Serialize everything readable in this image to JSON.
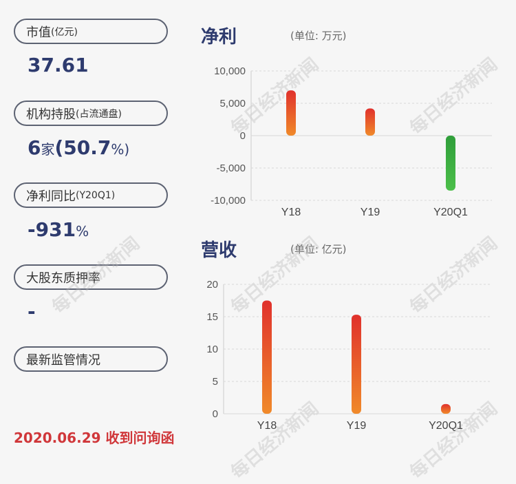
{
  "left_panel": {
    "items": [
      {
        "label": "市值",
        "sub": "(亿元)",
        "value": "37.61",
        "value_suffix": ""
      },
      {
        "label": "机构持股",
        "sub": "(占流通盘)",
        "value": "6",
        "value_mid": "家",
        "value_pct": "(50.7",
        "value_suffix": "%)"
      },
      {
        "label": "净利同比",
        "sub": "(Y20Q1)",
        "value": "-931",
        "value_suffix": "%"
      },
      {
        "label": "大股东质押率",
        "sub": "",
        "value": "-",
        "value_suffix": ""
      },
      {
        "label": "最新监管情况",
        "sub": "",
        "value": "",
        "value_suffix": ""
      }
    ],
    "footer": "2020.06.29 收到问询函"
  },
  "watermark": "每日经济新闻",
  "colors": {
    "title": "#2e3b6e",
    "footer": "#d0373a",
    "bar_positive_top": "#e0312c",
    "bar_positive_bottom": "#f08a2a",
    "bar_negative": "#3aaa3c"
  },
  "chart_data": [
    {
      "type": "bar",
      "title": "净利",
      "unit": "(单位: 万元)",
      "categories": [
        "Y18",
        "Y19",
        "Y20Q1"
      ],
      "values": [
        7000,
        4200,
        -8500
      ],
      "ylim": [
        -10000,
        10000
      ],
      "yticks": [
        10000,
        5000,
        0,
        -5000,
        -10000
      ],
      "ytick_labels": [
        "10,000",
        "5,000",
        "0",
        "-5,000",
        "-10,000"
      ],
      "grid": true
    },
    {
      "type": "bar",
      "title": "营收",
      "unit": "(单位: 亿元)",
      "categories": [
        "Y18",
        "Y19",
        "Y20Q1"
      ],
      "values": [
        17.5,
        15.3,
        1.5
      ],
      "ylim": [
        0,
        20
      ],
      "yticks": [
        20,
        15,
        10,
        5,
        0
      ],
      "ytick_labels": [
        "20",
        "15",
        "10",
        "5",
        "0"
      ],
      "grid": true
    }
  ]
}
